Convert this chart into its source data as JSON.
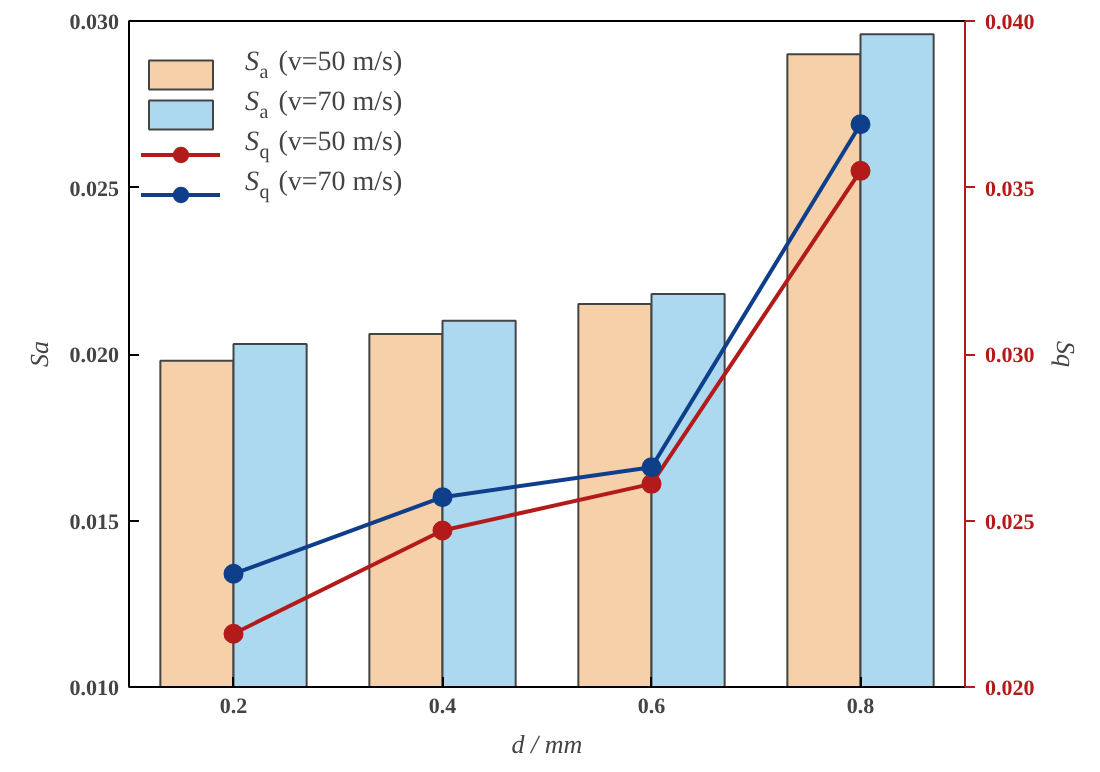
{
  "chart_data": {
    "type": "bar",
    "xlabel": "d / mm",
    "ylabel": "Sa",
    "y2label": "Sq",
    "x": [
      0.2,
      0.4,
      0.6,
      0.8
    ],
    "series": [
      {
        "name": "S$_{a}$ (v=50 m/s)",
        "color": "#f5d0a9",
        "values": [
          0.0198,
          0.0206,
          0.0215,
          0.029
        ]
      },
      {
        "name": "S$_{a}$ (v=70 m/s)",
        "color": "#acd9f0",
        "values": [
          0.0203,
          0.021,
          0.0218,
          0.0296
        ]
      },
      {
        "name": "S$_{q}$ (v=50 m/s)",
        "type": "line",
        "axis": "y2",
        "color": "#b31b1b",
        "values": [
          0.0216,
          0.0247,
          0.0261,
          0.0355
        ]
      },
      {
        "name": "S$_{q}$ (v=70 m/s)",
        "type": "line",
        "axis": "y2",
        "color": "#0f3f8a",
        "values": [
          0.0234,
          0.0257,
          0.0266,
          0.0369
        ]
      }
    ],
    "xlim": [
      0.1,
      0.9
    ],
    "xticks": [
      0.2,
      0.4,
      0.6,
      0.8
    ],
    "ylim": [
      0.01,
      0.03
    ],
    "yticks": [
      {
        "value": 0.01,
        "label": "0.010"
      },
      {
        "value": 0.015,
        "label": "0.015"
      },
      {
        "value": 0.02,
        "label": "0.020"
      },
      {
        "value": 0.025,
        "label": "0.025"
      },
      {
        "value": 0.03,
        "label": "0.030"
      }
    ],
    "y2lim": [
      0.02,
      0.04
    ],
    "y2ticks": [
      {
        "value": 0.02,
        "label": "0.020"
      },
      {
        "value": 0.025,
        "label": "0.025"
      },
      {
        "value": 0.03,
        "label": "0.030"
      },
      {
        "value": 0.035,
        "label": "0.035"
      },
      {
        "value": 0.04,
        "label": "0.040"
      }
    ],
    "legend": "top left",
    "grid": false,
    "marker": "circle",
    "line_style": "solid"
  }
}
